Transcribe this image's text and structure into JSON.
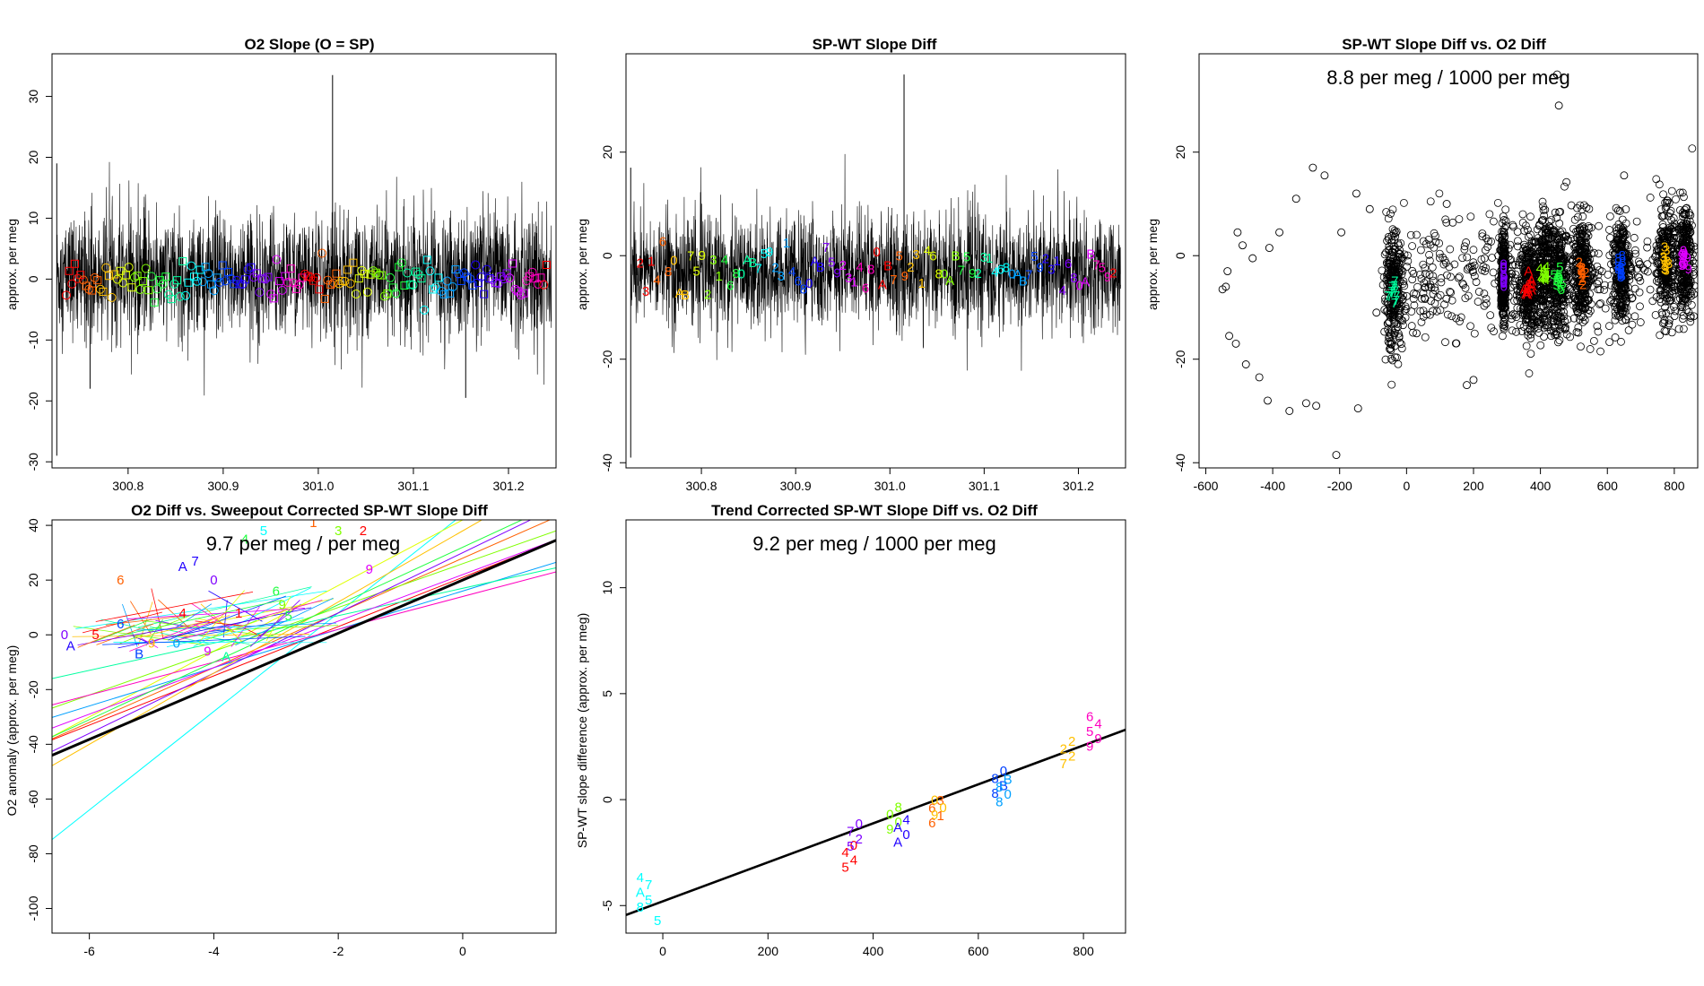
{
  "palette": [
    "#ff0000",
    "#ff6000",
    "#ffc000",
    "#dfff00",
    "#80ff00",
    "#20ff40",
    "#00ffa0",
    "#00ffff",
    "#00a0ff",
    "#0040ff",
    "#2000ff",
    "#8000ff",
    "#df00ff",
    "#ff00c0"
  ],
  "chart_data": [
    {
      "type": "line",
      "title": "O2 Slope (O = SP)",
      "xlabel": "",
      "ylabel": "approx. per meg",
      "xlim": [
        300.72,
        301.25
      ],
      "ylim": [
        -31,
        37
      ],
      "xticks": [
        300.8,
        300.9,
        301.0,
        301.1,
        301.2
      ],
      "xtick_labels": [
        "300.8",
        "300.9",
        "301.0",
        "301.1",
        "301.2"
      ],
      "yticks": [
        -30,
        -20,
        -10,
        0,
        10,
        20,
        30
      ],
      "ytick_labels": [
        "-30",
        "-20",
        "-10",
        "0",
        "10",
        "20",
        "30"
      ],
      "series": [
        {
          "name": "O2 slope",
          "noise_center": 0.5,
          "noise_spread": 6.5,
          "spikes": [
            {
              "x": 300.725,
              "y": 19
            },
            {
              "x": 300.725,
              "y": -29
            },
            {
              "x": 301.015,
              "y": 33.5
            },
            {
              "x": 301.155,
              "y": -19.5
            },
            {
              "x": 300.76,
              "y": -18
            }
          ]
        }
      ],
      "markers": {
        "kind": "symbol",
        "symbols": [
          "o",
          "□"
        ],
        "center": 0,
        "spread": 2.5
      }
    },
    {
      "type": "line",
      "title": "SP-WT Slope Diff",
      "xlabel": "",
      "ylabel": "approx. per meg",
      "xlim": [
        300.72,
        301.25
      ],
      "ylim": [
        -41,
        39
      ],
      "xticks": [
        300.8,
        300.9,
        301.0,
        301.1,
        301.2
      ],
      "xtick_labels": [
        "300.8",
        "300.9",
        "301.0",
        "301.1",
        "301.2"
      ],
      "yticks": [
        -40,
        -20,
        0,
        20
      ],
      "ytick_labels": [
        "-40",
        "-20",
        "0",
        "20"
      ],
      "series": [
        {
          "name": "SP-WT slope diff",
          "noise_center": -3,
          "noise_spread": 7,
          "spikes": [
            {
              "x": 300.725,
              "y": 17
            },
            {
              "x": 300.725,
              "y": -39
            },
            {
              "x": 301.015,
              "y": 35
            }
          ]
        }
      ],
      "markers": {
        "kind": "text",
        "labels": [
          "2",
          "3",
          "1",
          "4",
          "6",
          "8",
          "0",
          "A",
          "B",
          "7",
          "5",
          "9"
        ],
        "center": -2.5,
        "spread": 4
      }
    },
    {
      "type": "scatter",
      "title": "SP-WT Slope Diff vs. O2 Diff",
      "xlabel": "",
      "ylabel": "approx. per meg",
      "annotation": "8.8 per meg / 1000 per meg",
      "xlim": [
        -620,
        870
      ],
      "ylim": [
        -41,
        39
      ],
      "xticks": [
        -600,
        -400,
        -200,
        0,
        200,
        400,
        600,
        800
      ],
      "xtick_labels": [
        "-600",
        "-400",
        "-200",
        "0",
        "200",
        "400",
        "600",
        "800"
      ],
      "yticks": [
        -40,
        -20,
        0,
        20
      ],
      "ytick_labels": [
        "-40",
        "-20",
        "0",
        "20"
      ],
      "outliers": [
        [
          -550,
          -6.5
        ],
        [
          -540,
          -6
        ],
        [
          -535,
          -3
        ],
        [
          -530,
          -15.5
        ],
        [
          -510,
          -17
        ],
        [
          -505,
          4.5
        ],
        [
          -490,
          2
        ],
        [
          -480,
          -21
        ],
        [
          -460,
          -0.5
        ],
        [
          -440,
          -23.5
        ],
        [
          -415,
          -28
        ],
        [
          -410,
          1.5
        ],
        [
          -380,
          4.5
        ],
        [
          -350,
          -30
        ],
        [
          -330,
          11
        ],
        [
          -300,
          -28.5
        ],
        [
          -280,
          17
        ],
        [
          -270,
          -29
        ],
        [
          -245,
          15.5
        ],
        [
          -210,
          -38.5
        ],
        [
          -195,
          4.5
        ],
        [
          -150,
          12
        ],
        [
          -145,
          -29.5
        ],
        [
          -110,
          9
        ],
        [
          -90,
          -11
        ],
        [
          450,
          35
        ],
        [
          455,
          29
        ],
        [
          650,
          15.5
        ],
        [
          120,
          10
        ],
        [
          30,
          -15
        ],
        [
          180,
          -25
        ],
        [
          200,
          -24
        ]
      ],
      "clusters": [
        {
          "x": -40,
          "y": -7,
          "width": 40,
          "spread": 12,
          "label": "7",
          "color": "#00ffa0"
        },
        {
          "x": 365,
          "y": -6,
          "width": 45,
          "spread": 11,
          "label": "A",
          "color": "#ff0000"
        },
        {
          "x": 410,
          "y": -3.5,
          "width": 35,
          "spread": 11,
          "label": "4",
          "color": "#80ff00"
        },
        {
          "x": 455,
          "y": -4.5,
          "width": 40,
          "spread": 12,
          "label": "5",
          "color": "#20ff40"
        },
        {
          "x": 525,
          "y": -3,
          "width": 40,
          "spread": 11,
          "label": "2",
          "color": "#ff6000"
        },
        {
          "x": 640,
          "y": -2.5,
          "width": 35,
          "spread": 11,
          "label": "8",
          "color": "#0040ff"
        },
        {
          "x": 775,
          "y": -1,
          "width": 35,
          "spread": 11,
          "label": "3",
          "color": "#ffc000"
        },
        {
          "x": 830,
          "y": -0.5,
          "width": 35,
          "spread": 11,
          "label": "9",
          "color": "#df00ff"
        },
        {
          "x": 290,
          "y": -4,
          "width": 10,
          "spread": 10,
          "label": "0",
          "color": "#8000ff"
        }
      ]
    },
    {
      "type": "line",
      "title": "O2 Diff vs. Sweepout Corrected SP-WT Slope Diff",
      "xlabel": "",
      "ylabel": "O2 anomaly (approx. per meg)",
      "annotation": "9.7 per meg / per meg",
      "xlim": [
        -6.6,
        1.5
      ],
      "ylim": [
        -109,
        42
      ],
      "xticks": [
        -6,
        -4,
        -2,
        0
      ],
      "xtick_labels": [
        "-6",
        "-4",
        "-2",
        "0"
      ],
      "yticks": [
        -100,
        -80,
        -60,
        -40,
        -20,
        0,
        20,
        40
      ],
      "ytick_labels": [
        "-100",
        "-80",
        "-60",
        "-40",
        "-20",
        "0",
        "20",
        "40"
      ],
      "fit": {
        "slope": 9.7,
        "intercept": 20
      },
      "lines": [
        {
          "slope": 18,
          "intercept": 44,
          "color": "#00ffff"
        },
        {
          "slope": 12,
          "intercept": 42,
          "color": "#dfff00"
        },
        {
          "slope": 10,
          "intercept": 28,
          "color": "#ff6000"
        },
        {
          "slope": 9,
          "intercept": 21,
          "color": "#ff0000"
        },
        {
          "slope": 8,
          "intercept": 26,
          "color": "#80ff00"
        },
        {
          "slope": 7,
          "intercept": 16,
          "color": "#00a0ff"
        },
        {
          "slope": 11,
          "intercept": 30,
          "color": "#8000ff"
        },
        {
          "slope": 6,
          "intercept": 14,
          "color": "#ff00c0"
        },
        {
          "slope": 13,
          "intercept": 38,
          "color": "#ffc000"
        },
        {
          "slope": 5,
          "intercept": 17,
          "color": "#00ffa0"
        },
        {
          "slope": 8.5,
          "intercept": 22,
          "color": "#df00ff"
        },
        {
          "slope": 10.5,
          "intercept": 32,
          "color": "#20ff40"
        }
      ],
      "labels": [
        {
          "x": -6.4,
          "y": 0,
          "text": "0",
          "color": "#8000ff"
        },
        {
          "x": -6.3,
          "y": -4,
          "text": "A",
          "color": "#2000ff"
        },
        {
          "x": -5.9,
          "y": 0,
          "text": "5",
          "color": "#ff0000"
        },
        {
          "x": -5.5,
          "y": 20,
          "text": "6",
          "color": "#ff6000"
        },
        {
          "x": -5.5,
          "y": 4,
          "text": "6",
          "color": "#0040ff"
        },
        {
          "x": -5.2,
          "y": -7,
          "text": "B",
          "color": "#0040ff"
        },
        {
          "x": -4.5,
          "y": 25,
          "text": "A",
          "color": "#2000ff"
        },
        {
          "x": -4.3,
          "y": 27,
          "text": "7",
          "color": "#2000ff"
        },
        {
          "x": -4.5,
          "y": 8,
          "text": "4",
          "color": "#ff0000"
        },
        {
          "x": -4.0,
          "y": 20,
          "text": "0",
          "color": "#8000ff"
        },
        {
          "x": -3.6,
          "y": 8,
          "text": "1",
          "color": "#ff0000"
        },
        {
          "x": -3.5,
          "y": 35,
          "text": "4",
          "color": "#20ff40"
        },
        {
          "x": -3.2,
          "y": 38,
          "text": "5",
          "color": "#00ffff"
        },
        {
          "x": -3.0,
          "y": 16,
          "text": "6",
          "color": "#20ff40"
        },
        {
          "x": -2.8,
          "y": 7,
          "text": "5",
          "color": "#20ff40"
        },
        {
          "x": -2.9,
          "y": 11,
          "text": "9",
          "color": "#80ff00"
        },
        {
          "x": -2.4,
          "y": 41,
          "text": "1",
          "color": "#ff6000"
        },
        {
          "x": -2.0,
          "y": 38,
          "text": "3",
          "color": "#80ff00"
        },
        {
          "x": -1.6,
          "y": 38,
          "text": "2",
          "color": "#ff0000"
        },
        {
          "x": -1.5,
          "y": 24,
          "text": "9",
          "color": "#df00ff"
        },
        {
          "x": -1.3,
          "y": 46,
          "text": "2",
          "color": "#ffc000"
        },
        {
          "x": -4.1,
          "y": -6,
          "text": "9",
          "color": "#df00ff"
        },
        {
          "x": -3.8,
          "y": -8,
          "text": "A",
          "color": "#00ffa0"
        },
        {
          "x": -4.6,
          "y": -3,
          "text": "0",
          "color": "#00a0ff"
        },
        {
          "x": -5.0,
          "y": -3,
          "text": "9",
          "color": "#ffc000"
        }
      ]
    },
    {
      "type": "scatter",
      "title": "Trend Corrected SP-WT Slope Diff vs. O2 Diff",
      "xlabel": "",
      "ylabel": "SP-WT slope difference (approx. per meg)",
      "annotation": "9.2 per meg / 1000 per meg",
      "xlim": [
        -70,
        880
      ],
      "ylim": [
        -6.3,
        13.2
      ],
      "xticks": [
        0,
        200,
        400,
        600,
        800
      ],
      "xtick_labels": [
        "0",
        "200",
        "400",
        "600",
        "800"
      ],
      "yticks": [
        -5,
        0,
        5,
        10
      ],
      "ytick_labels": [
        "-5",
        "0",
        "5",
        "10"
      ],
      "fit": {
        "slope": 0.0092,
        "intercept": -4.8
      },
      "groups": [
        {
          "x": -35,
          "y": -4.2,
          "labels": [
            "8",
            "5",
            "A",
            "7",
            "4"
          ],
          "color": "#00ffff",
          "extra": {
            "x": -10,
            "y": -5.7,
            "text": "5"
          }
        },
        {
          "x": 355,
          "y": -2.5,
          "labels": [
            "5",
            "4",
            "4",
            "0"
          ],
          "color": "#ff0000"
        },
        {
          "x": 365,
          "y": -1.5,
          "labels": [
            "5",
            "2",
            "7",
            "0"
          ],
          "color": "#8000ff"
        },
        {
          "x": 440,
          "y": -0.7,
          "labels": [
            "9",
            "0",
            "0",
            "8"
          ],
          "color": "#80ff00"
        },
        {
          "x": 455,
          "y": -1.3,
          "labels": [
            "A",
            "0",
            "A",
            "4"
          ],
          "color": "#2000ff"
        },
        {
          "x": 520,
          "y": -0.4,
          "labels": [
            "6",
            "1",
            "6",
            "3"
          ],
          "color": "#ff6000"
        },
        {
          "x": 525,
          "y": -0.2,
          "labels": [
            "9",
            "0",
            "0"
          ],
          "color": "#ffc000"
        },
        {
          "x": 640,
          "y": 1.0,
          "labels": [
            "8",
            "B",
            "8",
            "0"
          ],
          "color": "#0040ff"
        },
        {
          "x": 648,
          "y": 0.6,
          "labels": [
            "8",
            "0",
            "8",
            "B"
          ],
          "color": "#00a0ff"
        },
        {
          "x": 770,
          "y": 2.4,
          "labels": [
            "7",
            "2",
            "2",
            "2"
          ],
          "color": "#ffc000"
        },
        {
          "x": 820,
          "y": 3.4,
          "labels": [
            "9",
            "9",
            "5",
            "4",
            "6"
          ],
          "color": "#ff00c0"
        }
      ]
    }
  ]
}
